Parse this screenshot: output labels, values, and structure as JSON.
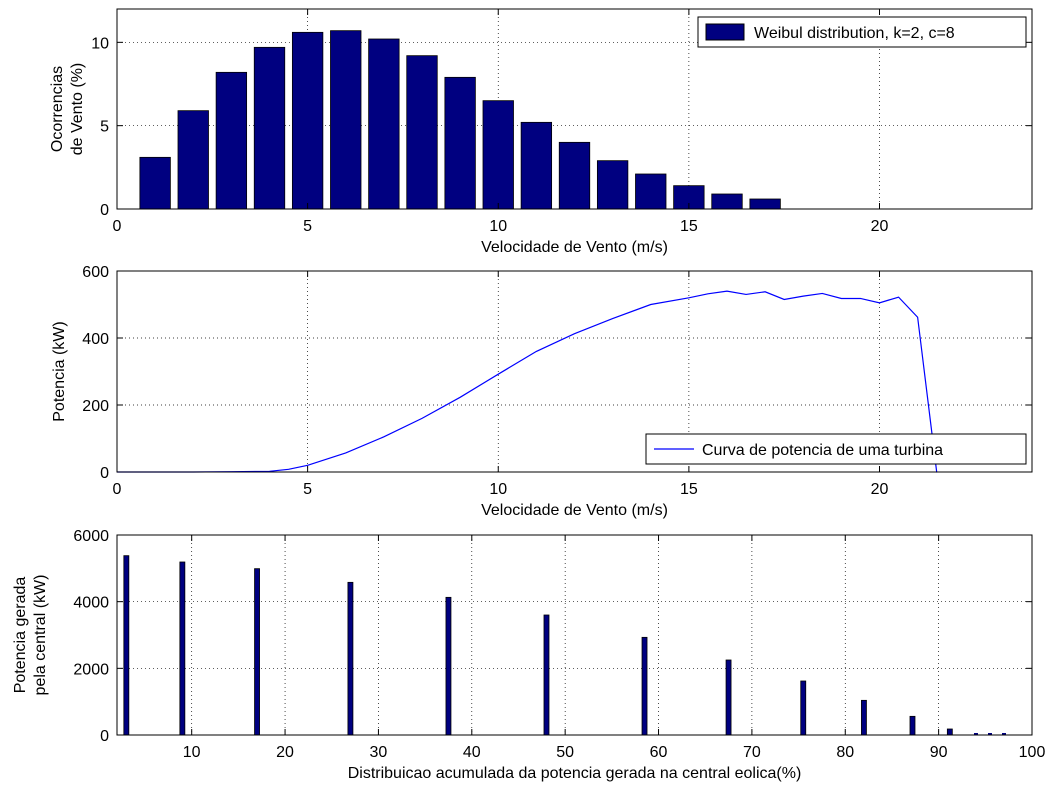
{
  "colors": {
    "bar": "#000080",
    "line": "#0000ff",
    "axis": "#000000",
    "grid": "#000000"
  },
  "chart_data": [
    {
      "type": "bar",
      "xlabel": "Velocidade de Vento (m/s)",
      "ylabel_lines": [
        "Ocorrencias",
        "de Vento (%)"
      ],
      "xlim": [
        0,
        24
      ],
      "ylim": [
        0,
        12
      ],
      "xticks": [
        0,
        5,
        10,
        15,
        20
      ],
      "yticks": [
        0,
        5,
        10
      ],
      "grid": true,
      "legend": {
        "position": "top-right",
        "entries": [
          "Weibul distribution, k=2, c=8"
        ]
      },
      "x": [
        1,
        2,
        3,
        4,
        5,
        6,
        7,
        8,
        9,
        10,
        11,
        12,
        13,
        14,
        15,
        16,
        17
      ],
      "values": [
        3.1,
        5.9,
        8.2,
        9.7,
        10.6,
        10.7,
        10.2,
        9.2,
        7.9,
        6.5,
        5.2,
        4.0,
        2.9,
        2.1,
        1.4,
        0.9,
        0.6
      ]
    },
    {
      "type": "line",
      "xlabel": "Velocidade de Vento (m/s)",
      "ylabel": "Potencia (kW)",
      "xlim": [
        0,
        24
      ],
      "ylim": [
        0,
        600
      ],
      "xticks": [
        0,
        5,
        10,
        15,
        20
      ],
      "yticks": [
        0,
        200,
        400,
        600
      ],
      "grid": true,
      "legend": {
        "position": "bottom-right",
        "entries": [
          "Curva de potencia de uma turbina"
        ]
      },
      "x": [
        0,
        1,
        2,
        3,
        4,
        4.5,
        5,
        6,
        7,
        8,
        9,
        10,
        11,
        12,
        13,
        14,
        15,
        15.5,
        16,
        16.5,
        17,
        17.5,
        18,
        18.5,
        19,
        19.5,
        20,
        20.5,
        21,
        21.5
      ],
      "y": [
        0,
        0,
        0,
        1,
        2,
        8,
        20,
        57,
        105,
        160,
        223,
        292,
        360,
        413,
        458,
        500,
        520,
        532,
        540,
        530,
        538,
        515,
        525,
        533,
        518,
        518,
        505,
        522,
        462,
        0
      ]
    },
    {
      "type": "bar",
      "xlabel": "Distribuicao acumulada da potencia gerada na central eolica(%)",
      "ylabel_lines": [
        "Potencia gerada",
        "pela central (kW)"
      ],
      "xlim": [
        2,
        100
      ],
      "ylim": [
        0,
        6000
      ],
      "xticks": [
        10,
        20,
        30,
        40,
        50,
        60,
        70,
        80,
        90,
        100
      ],
      "yticks": [
        0,
        2000,
        4000,
        6000
      ],
      "grid": true,
      "x": [
        3,
        9,
        17,
        27,
        37.5,
        48,
        58.5,
        67.5,
        75.5,
        82,
        87.2,
        91.2
      ],
      "values": [
        5380,
        5190,
        4990,
        4580,
        4130,
        3600,
        2930,
        2250,
        1620,
        1040,
        560,
        180
      ]
    }
  ]
}
